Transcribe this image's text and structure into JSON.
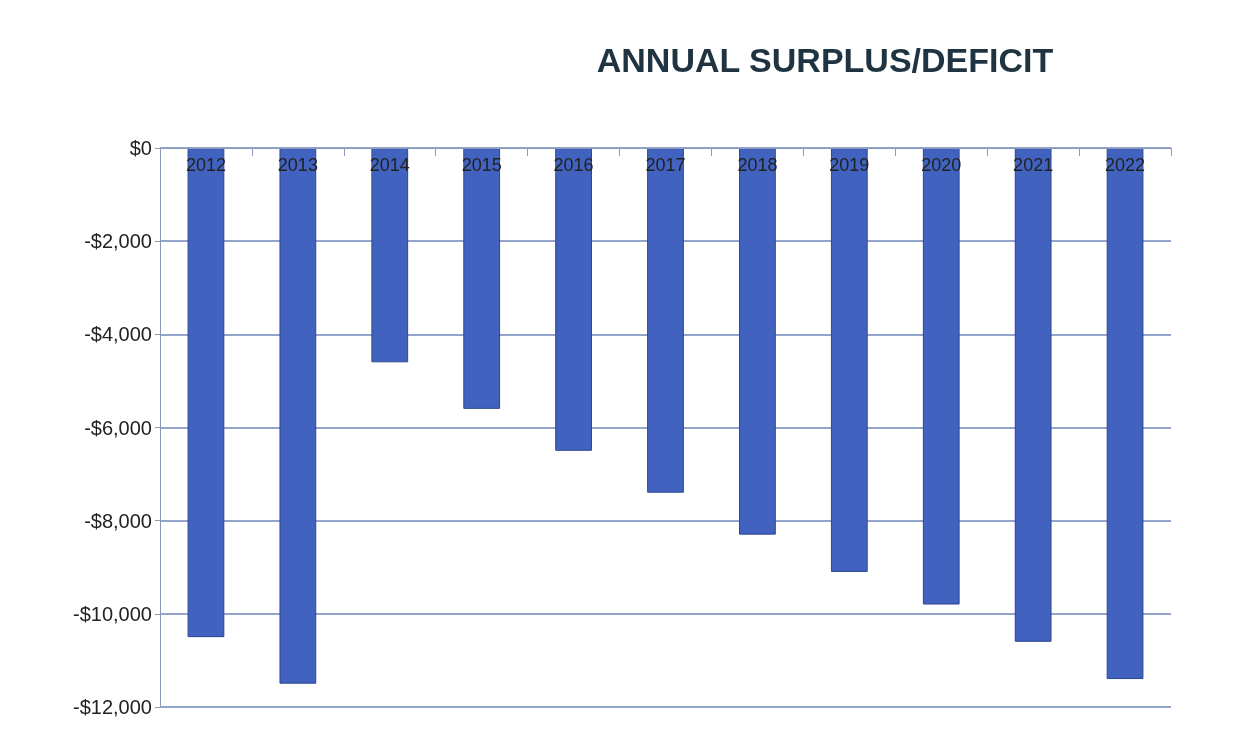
{
  "chart_data": {
    "type": "bar",
    "title": "ANNUAL SURPLUS/DEFICIT",
    "categories": [
      "2012",
      "2013",
      "2014",
      "2015",
      "2016",
      "2017",
      "2018",
      "2019",
      "2020",
      "2021",
      "2022"
    ],
    "values": [
      -10500,
      -11500,
      -4600,
      -5600,
      -6500,
      -7400,
      -8300,
      -9100,
      -9800,
      -10600,
      -11400
    ],
    "color": "#4163bf",
    "ylim": [
      -12000,
      0
    ],
    "yticks": [
      {
        "value": -12000,
        "label": "-$12,000"
      },
      {
        "value": -10000,
        "label": "-$10,000"
      },
      {
        "value": -8000,
        "label": "-$8,000"
      },
      {
        "value": -6000,
        "label": "-$6,000"
      },
      {
        "value": -4000,
        "label": "-$4,000"
      },
      {
        "value": -2000,
        "label": "-$2,000"
      },
      {
        "value": 0,
        "label": "$0"
      }
    ],
    "grid": true
  }
}
